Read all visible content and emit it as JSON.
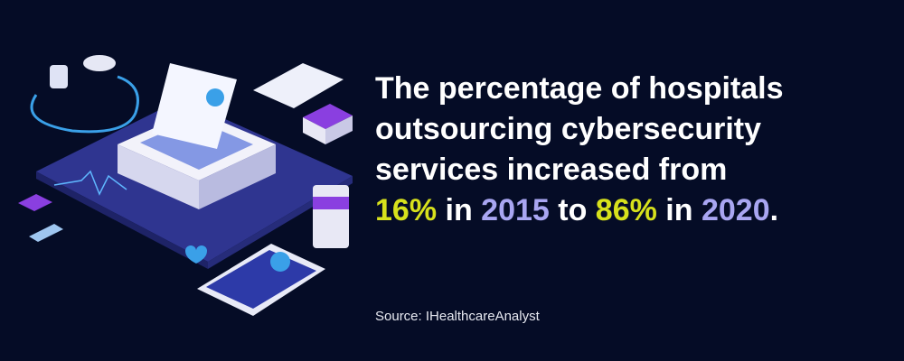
{
  "headline": {
    "lines": [
      {
        "segments": [
          {
            "text": "The percentage of hospitals"
          }
        ]
      },
      {
        "segments": [
          {
            "text": "outsourcing cybersecurity"
          }
        ]
      },
      {
        "segments": [
          {
            "text": "services increased from"
          }
        ]
      },
      {
        "segments": [
          {
            "text": "16%",
            "color": "#d7e11c"
          },
          {
            "text": " in "
          },
          {
            "text": "2015",
            "color": "#a9a6f2"
          },
          {
            "text": " to "
          },
          {
            "text": "86%",
            "color": "#d7e11c"
          },
          {
            "text": " in "
          },
          {
            "text": "2020",
            "color": "#a9a6f2"
          },
          {
            "text": "."
          }
        ]
      }
    ]
  },
  "source": "Source: IHealthcareAnalyst"
}
